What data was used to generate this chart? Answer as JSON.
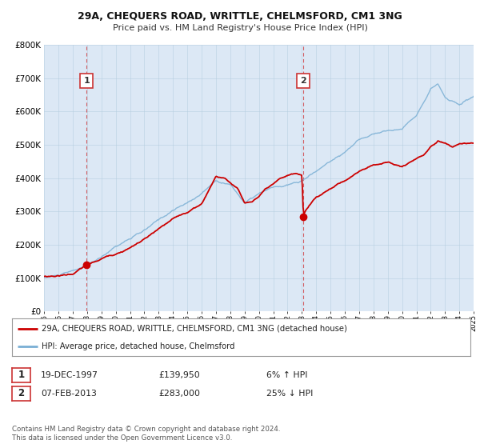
{
  "title": "29A, CHEQUERS ROAD, WRITTLE, CHELMSFORD, CM1 3NG",
  "subtitle": "Price paid vs. HM Land Registry's House Price Index (HPI)",
  "bg_color": "#dce8f5",
  "red_line_color": "#cc0000",
  "blue_line_color": "#7aafd4",
  "sale1_year": 1997.96,
  "sale1_price": 139950,
  "sale1_label": "1",
  "sale1_date": "19-DEC-1997",
  "sale1_pct": "6% ↑ HPI",
  "sale2_year": 2013.1,
  "sale2_price": 283000,
  "sale2_label": "2",
  "sale2_date": "07-FEB-2013",
  "sale2_pct": "25% ↓ HPI",
  "legend_line1": "29A, CHEQUERS ROAD, WRITTLE, CHELMSFORD, CM1 3NG (detached house)",
  "legend_line2": "HPI: Average price, detached house, Chelmsford",
  "footer1": "Contains HM Land Registry data © Crown copyright and database right 2024.",
  "footer2": "This data is licensed under the Open Government Licence v3.0.",
  "xmin": 1995,
  "xmax": 2025,
  "ymin": 0,
  "ymax": 800000
}
